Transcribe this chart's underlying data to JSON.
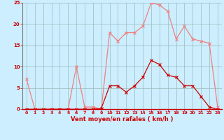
{
  "x": [
    0,
    1,
    2,
    3,
    4,
    5,
    6,
    7,
    8,
    9,
    10,
    11,
    12,
    13,
    14,
    15,
    16,
    17,
    18,
    19,
    20,
    21,
    22,
    23
  ],
  "rafales": [
    7,
    0,
    0,
    0,
    0,
    0,
    10,
    0.5,
    0.5,
    0,
    18,
    16,
    18,
    18,
    19.5,
    25,
    24.5,
    23,
    16.5,
    19.5,
    16.5,
    16,
    15.5,
    0.5
  ],
  "vent_moyen": [
    0,
    0,
    0,
    0,
    0,
    0,
    0,
    0,
    0,
    0.2,
    5.5,
    5.5,
    4,
    5.5,
    7.5,
    11.5,
    10.5,
    8,
    7.5,
    5.5,
    5.5,
    3,
    0.5,
    0
  ],
  "rafales_color": "#f08080",
  "vent_moyen_color": "#cc0000",
  "bg_color": "#cceeff",
  "grid_color": "#99bbbb",
  "xlabel": "Vent moyen/en rafales ( km/h )",
  "xlabel_color": "#cc0000",
  "tick_color": "#cc0000",
  "ylim": [
    0,
    25
  ],
  "xlim": [
    -0.5,
    23.5
  ],
  "yticks": [
    0,
    5,
    10,
    15,
    20,
    25
  ],
  "xticks": [
    0,
    1,
    2,
    3,
    4,
    5,
    6,
    7,
    8,
    9,
    10,
    11,
    12,
    13,
    14,
    15,
    16,
    17,
    18,
    19,
    20,
    21,
    22,
    23
  ],
  "left_spine_color": "#777777",
  "bottom_spine_color": "#cc0000"
}
